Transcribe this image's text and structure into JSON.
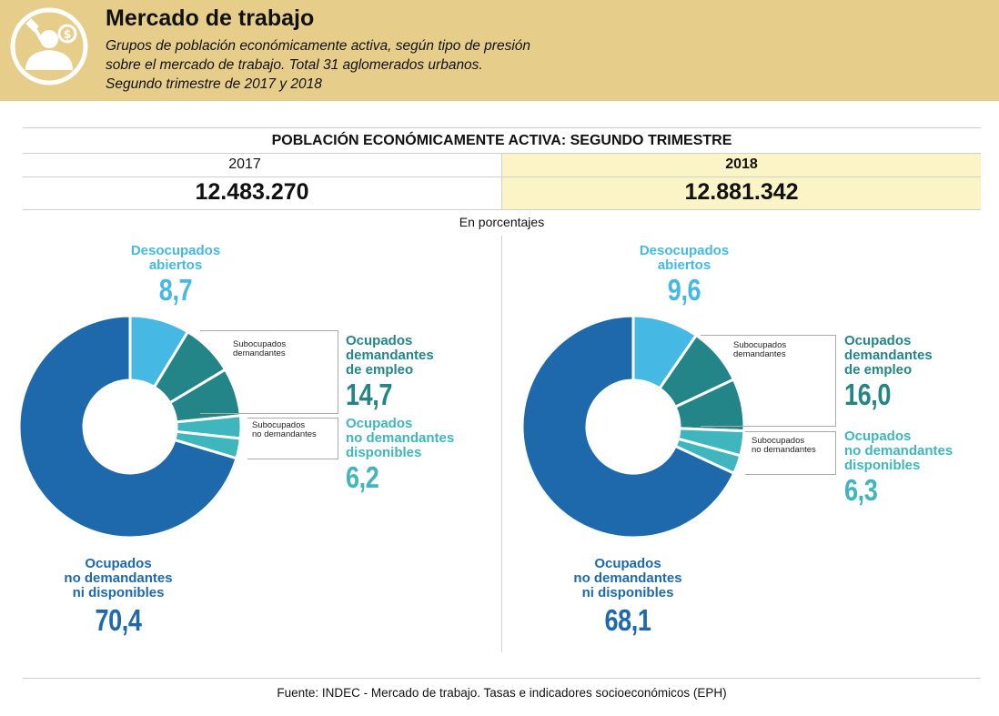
{
  "header": {
    "title": "Mercado de trabajo",
    "subtitle_lines": [
      "Grupos de población económicamente activa, según tipo de presión",
      "sobre el mercado de trabajo. Total 31 aglomerados urbanos.",
      "Segundo trimestre de 2017 y 2018"
    ],
    "icon": "worker-tools-money-icon",
    "bg_color": "#e6cd8a"
  },
  "table": {
    "title": "POBLACIÓN ECONÓMICAMENTE ACTIVA: SEGUNDO TRIMESTRE",
    "years": [
      {
        "year": "2017",
        "total": "12.483.270"
      },
      {
        "year": "2018",
        "total": "12.881.342"
      }
    ],
    "highlight_color": "#fbf4c6"
  },
  "unit_note": "En porcentajes",
  "labels": {
    "desocupados": [
      "Desocupados",
      "abiertos"
    ],
    "ocupados_demandantes": [
      "Ocupados",
      "demandantes",
      "de empleo"
    ],
    "subocupados_demandantes": [
      "Subocupados",
      "demandantes"
    ],
    "subocupados_no_demandantes": [
      "Subocupados",
      "no demandantes"
    ],
    "ocupados_no_demandantes_disp": [
      "Ocupados",
      "no demandantes",
      "disponibles"
    ],
    "ocupados_no_demandantes_ni": [
      "Ocupados",
      "no demandantes",
      "ni disponibles"
    ]
  },
  "colors": {
    "desocupados": "#45b8e4",
    "ocupados_demandantes": "#238588",
    "ocupados_no_demandantes_disp": "#3fb5bd",
    "ocupados_no_demandantes_ni": "#1d69ab"
  },
  "chart_data": [
    {
      "type": "pie",
      "year": "2017",
      "unit": "%",
      "groups": [
        {
          "name": "Desocupados abiertos",
          "value": "8,7"
        },
        {
          "name": "Ocupados demandantes de empleo",
          "value": "14,7"
        },
        {
          "name": "Ocupados no demandantes disponibles",
          "value": "6,2"
        },
        {
          "name": "Ocupados no demandantes ni disponibles",
          "value": "70,4"
        }
      ],
      "slices": [
        {
          "group": "Desocupados abiertos",
          "value": 8.7,
          "color": "#45b8e4"
        },
        {
          "group": "Ocupados demandantes de empleo",
          "subgroup": "Subocupados demandantes",
          "value": 7.7,
          "color": "#238588"
        },
        {
          "group": "Ocupados demandantes de empleo",
          "value": 7.0,
          "color": "#238588"
        },
        {
          "group": "Ocupados no demandantes disponibles",
          "subgroup": "Subocupados no demandantes",
          "value": 3.3,
          "color": "#3fb5bd"
        },
        {
          "group": "Ocupados no demandantes disponibles",
          "value": 2.9,
          "color": "#3fb5bd"
        },
        {
          "group": "Ocupados no demandantes ni disponibles",
          "value": 70.4,
          "color": "#1d69ab"
        }
      ]
    },
    {
      "type": "pie",
      "year": "2018",
      "unit": "%",
      "groups": [
        {
          "name": "Desocupados abiertos",
          "value": "9,6"
        },
        {
          "name": "Ocupados demandantes de empleo",
          "value": "16,0"
        },
        {
          "name": "Ocupados no demandantes disponibles",
          "value": "6,3"
        },
        {
          "name": "Ocupados no demandantes ni disponibles",
          "value": "68,1"
        }
      ],
      "slices": [
        {
          "group": "Desocupados abiertos",
          "value": 9.6,
          "color": "#45b8e4"
        },
        {
          "group": "Ocupados demandantes de empleo",
          "subgroup": "Subocupados demandantes",
          "value": 8.4,
          "color": "#238588"
        },
        {
          "group": "Ocupados demandantes de empleo",
          "value": 7.6,
          "color": "#238588"
        },
        {
          "group": "Ocupados no demandantes disponibles",
          "subgroup": "Subocupados no demandantes",
          "value": 3.6,
          "color": "#3fb5bd"
        },
        {
          "group": "Ocupados no demandantes disponibles",
          "value": 2.7,
          "color": "#3fb5bd"
        },
        {
          "group": "Ocupados no demandantes ni disponibles",
          "value": 68.1,
          "color": "#1d69ab"
        }
      ]
    }
  ],
  "source": "Fuente: INDEC - Mercado de trabajo. Tasas e indicadores socioeconómicos (EPH)"
}
